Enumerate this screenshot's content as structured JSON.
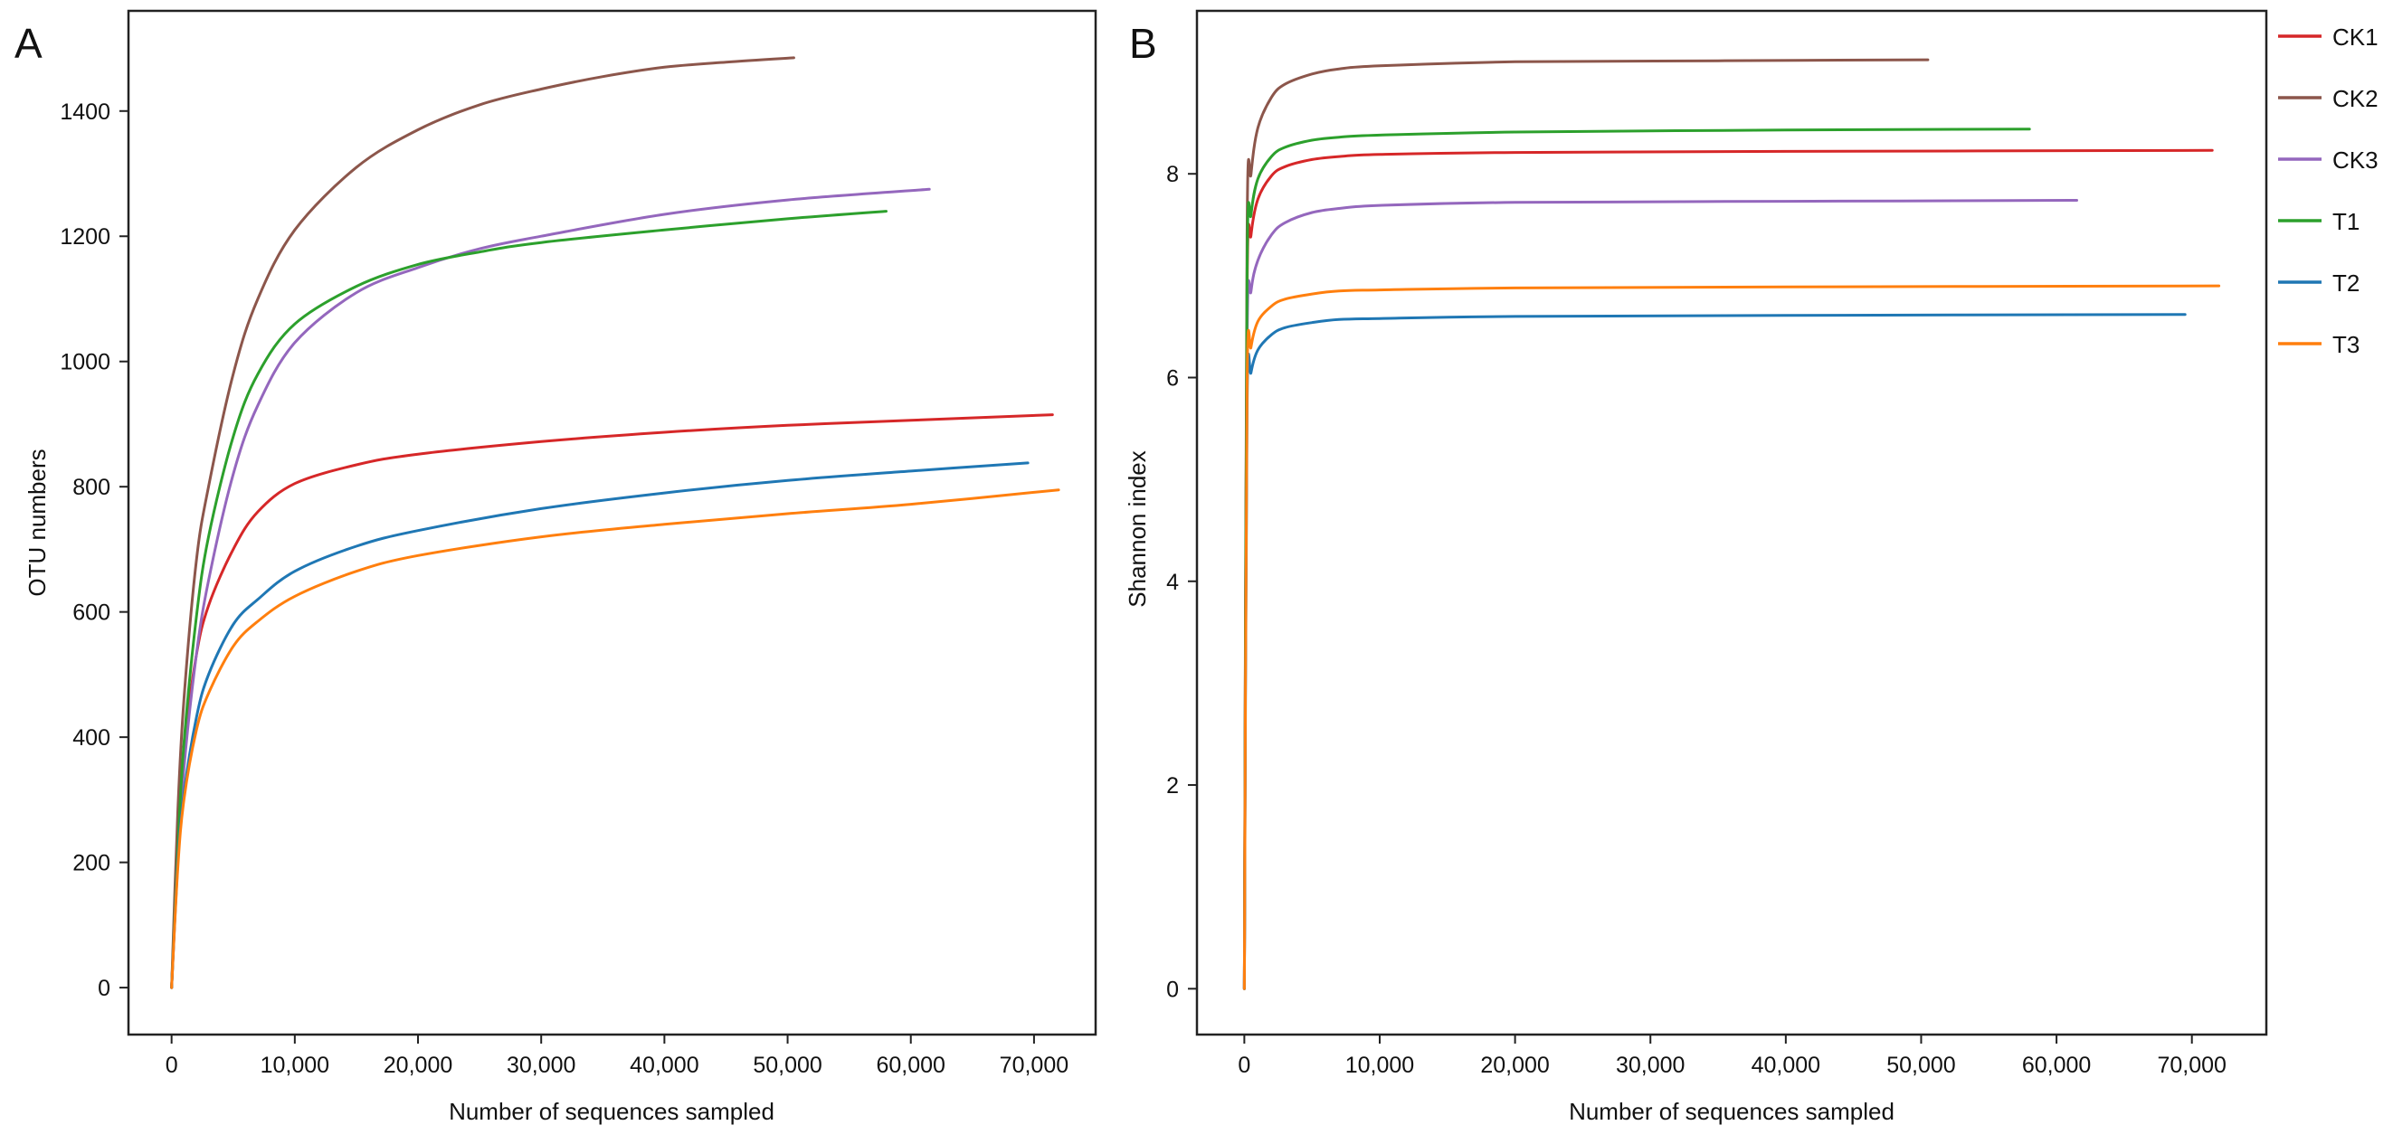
{
  "figure": {
    "legend": {
      "entries": [
        {
          "name": "CK1",
          "color": "#d62728"
        },
        {
          "name": "CK2",
          "color": "#8c564b"
        },
        {
          "name": "CK3",
          "color": "#9467bd"
        },
        {
          "name": "T1",
          "color": "#2ca02c"
        },
        {
          "name": "T2",
          "color": "#1f77b4"
        },
        {
          "name": "T3",
          "color": "#ff7f0e"
        }
      ]
    }
  },
  "chart_data": [
    {
      "panel": "A",
      "type": "line",
      "title": "",
      "xlabel": "Number of sequences sampled",
      "ylabel": "OTU numbers",
      "xlim": [
        -3500,
        75000
      ],
      "ylim": [
        -75,
        1560
      ],
      "xticks": [
        0,
        10000,
        20000,
        30000,
        40000,
        50000,
        60000,
        70000
      ],
      "xtick_labels": [
        "0",
        "10,000",
        "20,000",
        "30,000",
        "40,000",
        "50,000",
        "60,000",
        "70,000"
      ],
      "yticks": [
        0,
        200,
        400,
        600,
        800,
        1000,
        1200,
        1400
      ],
      "ytick_labels": [
        "0",
        "200",
        "400",
        "600",
        "800",
        "1000",
        "1200",
        "1400"
      ],
      "series": [
        {
          "name": "CK1",
          "color": "#d62728",
          "x": [
            0,
            500,
            1000,
            2000,
            3000,
            5000,
            7000,
            10000,
            15000,
            20000,
            30000,
            40000,
            50000,
            60000,
            71500
          ],
          "y": [
            0,
            230,
            380,
            530,
            610,
            700,
            760,
            805,
            835,
            852,
            872,
            887,
            898,
            906,
            915
          ]
        },
        {
          "name": "CK2",
          "color": "#8c564b",
          "x": [
            0,
            500,
            1000,
            2000,
            3000,
            5000,
            7000,
            10000,
            15000,
            20000,
            25000,
            30000,
            35000,
            40000,
            45000,
            50500
          ],
          "y": [
            0,
            280,
            460,
            680,
            800,
            980,
            1100,
            1210,
            1310,
            1370,
            1410,
            1435,
            1455,
            1470,
            1478,
            1485
          ]
        },
        {
          "name": "CK3",
          "color": "#9467bd",
          "x": [
            0,
            500,
            1000,
            2000,
            3000,
            5000,
            7000,
            10000,
            15000,
            20000,
            25000,
            30000,
            40000,
            50000,
            61500
          ],
          "y": [
            0,
            200,
            350,
            530,
            650,
            820,
            930,
            1030,
            1110,
            1150,
            1180,
            1200,
            1235,
            1258,
            1275
          ]
        },
        {
          "name": "T1",
          "color": "#2ca02c",
          "x": [
            0,
            500,
            1000,
            2000,
            3000,
            5000,
            7000,
            10000,
            15000,
            20000,
            25000,
            30000,
            40000,
            50000,
            58000
          ],
          "y": [
            0,
            220,
            390,
            590,
            720,
            880,
            980,
            1060,
            1120,
            1155,
            1175,
            1190,
            1210,
            1228,
            1240
          ]
        },
        {
          "name": "T2",
          "color": "#1f77b4",
          "x": [
            0,
            500,
            1000,
            2000,
            3000,
            5000,
            7000,
            10000,
            15000,
            20000,
            30000,
            40000,
            50000,
            60000,
            69500
          ],
          "y": [
            0,
            200,
            310,
            430,
            500,
            580,
            620,
            665,
            705,
            730,
            765,
            790,
            810,
            825,
            838
          ]
        },
        {
          "name": "T3",
          "color": "#ff7f0e",
          "x": [
            0,
            500,
            1000,
            2000,
            3000,
            5000,
            7000,
            10000,
            15000,
            20000,
            30000,
            40000,
            50000,
            60000,
            72000
          ],
          "y": [
            0,
            190,
            300,
            410,
            470,
            545,
            585,
            625,
            665,
            690,
            720,
            740,
            757,
            772,
            795
          ]
        }
      ]
    },
    {
      "panel": "B",
      "type": "line",
      "title": "",
      "xlabel": "Number of sequences sampled",
      "ylabel": "Shannon index",
      "xlim": [
        -3500,
        75500
      ],
      "ylim": [
        -0.45,
        9.6
      ],
      "xticks": [
        0,
        10000,
        20000,
        30000,
        40000,
        50000,
        60000,
        70000
      ],
      "xtick_labels": [
        "0",
        "10,000",
        "20,000",
        "30,000",
        "40,000",
        "50,000",
        "60,000",
        "70,000"
      ],
      "yticks": [
        0,
        2,
        4,
        6,
        8
      ],
      "ytick_labels": [
        "0",
        "2",
        "4",
        "6",
        "8"
      ],
      "series": [
        {
          "name": "CK1",
          "color": "#d62728",
          "x": [
            0,
            200,
            500,
            1000,
            2000,
            3000,
            5000,
            7000,
            10000,
            20000,
            40000,
            71500
          ],
          "y": [
            0,
            6.8,
            7.4,
            7.75,
            7.98,
            8.07,
            8.14,
            8.17,
            8.19,
            8.21,
            8.22,
            8.23
          ]
        },
        {
          "name": "CK2",
          "color": "#8c564b",
          "x": [
            0,
            200,
            500,
            1000,
            2000,
            3000,
            5000,
            7000,
            10000,
            20000,
            35000,
            50500
          ],
          "y": [
            0,
            7.4,
            8.0,
            8.45,
            8.75,
            8.88,
            8.98,
            9.03,
            9.06,
            9.1,
            9.11,
            9.12
          ]
        },
        {
          "name": "CK3",
          "color": "#9467bd",
          "x": [
            0,
            200,
            500,
            1000,
            2000,
            3000,
            5000,
            7000,
            10000,
            20000,
            40000,
            61500
          ],
          "y": [
            0,
            6.3,
            6.85,
            7.15,
            7.4,
            7.52,
            7.62,
            7.66,
            7.69,
            7.72,
            7.73,
            7.74
          ]
        },
        {
          "name": "T1",
          "color": "#2ca02c",
          "x": [
            0,
            200,
            500,
            1000,
            2000,
            3000,
            5000,
            7000,
            10000,
            20000,
            40000,
            58000
          ],
          "y": [
            0,
            7.0,
            7.6,
            7.95,
            8.17,
            8.26,
            8.33,
            8.36,
            8.38,
            8.41,
            8.43,
            8.44
          ]
        },
        {
          "name": "T2",
          "color": "#1f77b4",
          "x": [
            0,
            200,
            500,
            1000,
            2000,
            3000,
            5000,
            7000,
            10000,
            20000,
            40000,
            69500
          ],
          "y": [
            0,
            5.7,
            6.05,
            6.27,
            6.42,
            6.49,
            6.54,
            6.57,
            6.58,
            6.6,
            6.61,
            6.62
          ]
        },
        {
          "name": "T3",
          "color": "#ff7f0e",
          "x": [
            0,
            200,
            500,
            1000,
            2000,
            3000,
            5000,
            7000,
            10000,
            20000,
            40000,
            72000
          ],
          "y": [
            0,
            5.9,
            6.3,
            6.55,
            6.7,
            6.77,
            6.82,
            6.85,
            6.86,
            6.88,
            6.89,
            6.9
          ]
        }
      ]
    }
  ]
}
